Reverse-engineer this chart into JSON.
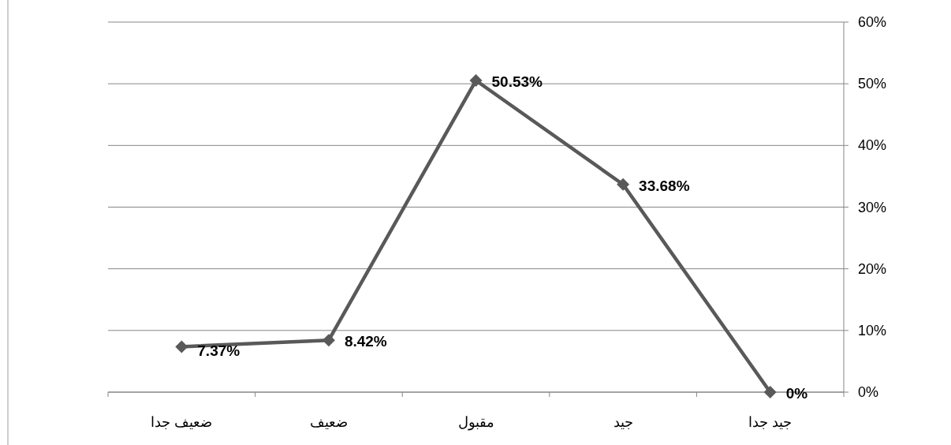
{
  "chart_data": {
    "type": "line",
    "categories": [
      "ضعيف جدا",
      "ضعيف",
      "مقبول",
      "جيد",
      "جيد جدا"
    ],
    "series": [
      {
        "color": "#595959",
        "values": [
          7.37,
          8.42,
          50.53,
          33.68,
          0
        ],
        "value_labels": [
          "7.37%",
          "8.42%",
          "50.53%",
          "33.68%",
          "0%"
        ]
      }
    ],
    "ylim": [
      0,
      60
    ],
    "yticks": [
      {
        "value": 0,
        "label": "0%"
      },
      {
        "value": 10,
        "label": "10%"
      },
      {
        "value": 20,
        "label": "20%"
      },
      {
        "value": 30,
        "label": "30%"
      },
      {
        "value": 40,
        "label": "40%"
      },
      {
        "value": 50,
        "label": "50%"
      },
      {
        "value": 60,
        "label": "60%"
      }
    ],
    "grid": "y",
    "marker": "diamond",
    "line_style": "solid"
  }
}
